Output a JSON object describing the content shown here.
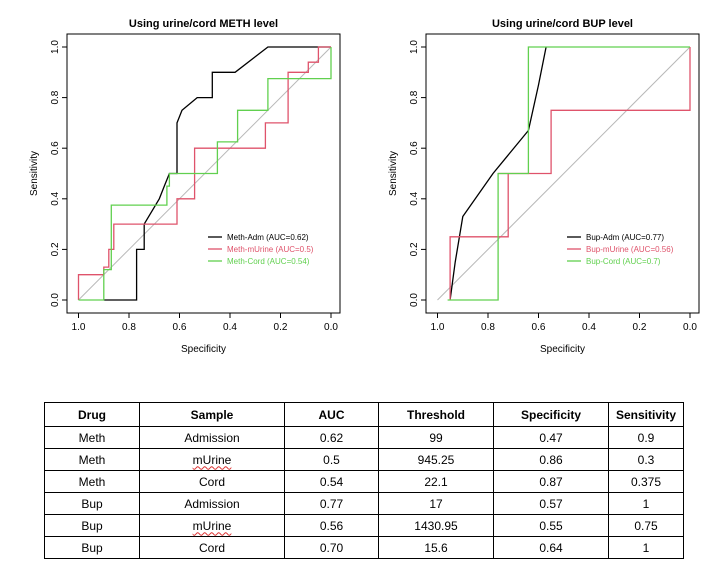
{
  "chart_data": [
    {
      "type": "line",
      "title": "Using urine/cord METH level",
      "xlabel": "Specificity",
      "ylabel": "Sensitivity",
      "xlim": [
        1.0,
        0.0
      ],
      "ylim": [
        0.0,
        1.0
      ],
      "x_reversed": true,
      "xticks": [
        "1.0",
        "0.8",
        "0.6",
        "0.4",
        "0.2",
        "0.0"
      ],
      "yticks": [
        "0.0",
        "0.2",
        "0.4",
        "0.6",
        "0.8",
        "1.0"
      ],
      "grid": false,
      "diagonal": true,
      "legend_position": "bottom-right",
      "series": [
        {
          "name": "Meth-Adm (AUC=0.62)",
          "color": "#000000",
          "x": [
            0.9,
            0.77,
            0.77,
            0.74,
            0.74,
            0.68,
            0.66,
            0.64,
            0.61,
            0.61,
            0.59,
            0.53,
            0.53,
            0.47,
            0.47,
            0.38,
            0.25,
            0.0
          ],
          "y": [
            0.0,
            0.0,
            0.2,
            0.2,
            0.3,
            0.4,
            0.45,
            0.5,
            0.5,
            0.7,
            0.75,
            0.8,
            0.8,
            0.8,
            0.9,
            0.9,
            1.0,
            1.0
          ]
        },
        {
          "name": "Meth-mUrine (AUC=0.5)",
          "color": "#DF536B",
          "x": [
            1.0,
            1.0,
            0.9,
            0.9,
            0.88,
            0.88,
            0.86,
            0.86,
            0.61,
            0.61,
            0.54,
            0.54,
            0.26,
            0.26,
            0.17,
            0.17,
            0.09,
            0.09,
            0.05,
            0.05,
            0.0
          ],
          "y": [
            0.0,
            0.1,
            0.1,
            0.13,
            0.13,
            0.2,
            0.2,
            0.3,
            0.3,
            0.4,
            0.4,
            0.6,
            0.6,
            0.7,
            0.7,
            0.9,
            0.9,
            0.94,
            0.94,
            1.0,
            1.0
          ]
        },
        {
          "name": "Meth-Cord (AUC=0.54)",
          "color": "#61D04F",
          "x": [
            1.0,
            0.9,
            0.9,
            0.87,
            0.87,
            0.65,
            0.65,
            0.64,
            0.64,
            0.45,
            0.45,
            0.37,
            0.37,
            0.25,
            0.25,
            0.0,
            0.0
          ],
          "y": [
            0.0,
            0.0,
            0.12,
            0.12,
            0.375,
            0.375,
            0.45,
            0.45,
            0.5,
            0.5,
            0.625,
            0.625,
            0.75,
            0.75,
            0.875,
            0.875,
            1.0
          ]
        }
      ]
    },
    {
      "type": "line",
      "title": "Using urine/cord BUP level",
      "xlabel": "Specificity",
      "ylabel": "Sensitivity",
      "xlim": [
        1.0,
        0.0
      ],
      "ylim": [
        0.0,
        1.0
      ],
      "x_reversed": true,
      "xticks": [
        "1.0",
        "0.8",
        "0.6",
        "0.4",
        "0.2",
        "0.0"
      ],
      "yticks": [
        "0.0",
        "0.2",
        "0.4",
        "0.6",
        "0.8",
        "1.0"
      ],
      "grid": false,
      "diagonal": true,
      "legend_position": "bottom-right",
      "series": [
        {
          "name": "Bup-Adm (AUC=0.77)",
          "color": "#000000",
          "x": [
            0.95,
            0.93,
            0.9,
            0.78,
            0.64,
            0.6,
            0.57
          ],
          "y": [
            0.0,
            0.15,
            0.33,
            0.5,
            0.67,
            0.85,
            1.0
          ]
        },
        {
          "name": "Bup-mUrine (AUC=0.56)",
          "color": "#DF536B",
          "x": [
            0.95,
            0.95,
            0.72,
            0.72,
            0.76,
            0.64,
            0.64,
            0.55,
            0.55,
            0.0,
            0.0
          ],
          "y": [
            0.0,
            0.25,
            0.25,
            0.5,
            0.5,
            0.5,
            0.5,
            0.5,
            0.75,
            0.75,
            1.0
          ]
        },
        {
          "name": "Bup-Cord (AUC=0.7)",
          "color": "#61D04F",
          "x": [
            0.96,
            0.76,
            0.76,
            0.64,
            0.64,
            0.0
          ],
          "y": [
            0.0,
            0.0,
            0.5,
            0.5,
            1.0,
            1.0
          ]
        }
      ]
    }
  ],
  "table": {
    "headers": [
      "Drug",
      "Sample",
      "AUC",
      "Threshold",
      "Specificity",
      "Sensitivity"
    ],
    "rows": [
      [
        "Meth",
        "Admission",
        "0.62",
        "99",
        "0.47",
        "0.9"
      ],
      [
        "Meth",
        "mUrine",
        "0.5",
        "945.25",
        "0.86",
        "0.3"
      ],
      [
        "Meth",
        "Cord",
        "0.54",
        "22.1",
        "0.87",
        "0.375"
      ],
      [
        "Bup",
        "Admission",
        "0.77",
        "17",
        "0.57",
        "1"
      ],
      [
        "Bup",
        "mUrine",
        "0.56",
        "1430.95",
        "0.55",
        "0.75"
      ],
      [
        "Bup",
        "Cord",
        "0.70",
        "15.6",
        "0.64",
        "1"
      ]
    ]
  }
}
